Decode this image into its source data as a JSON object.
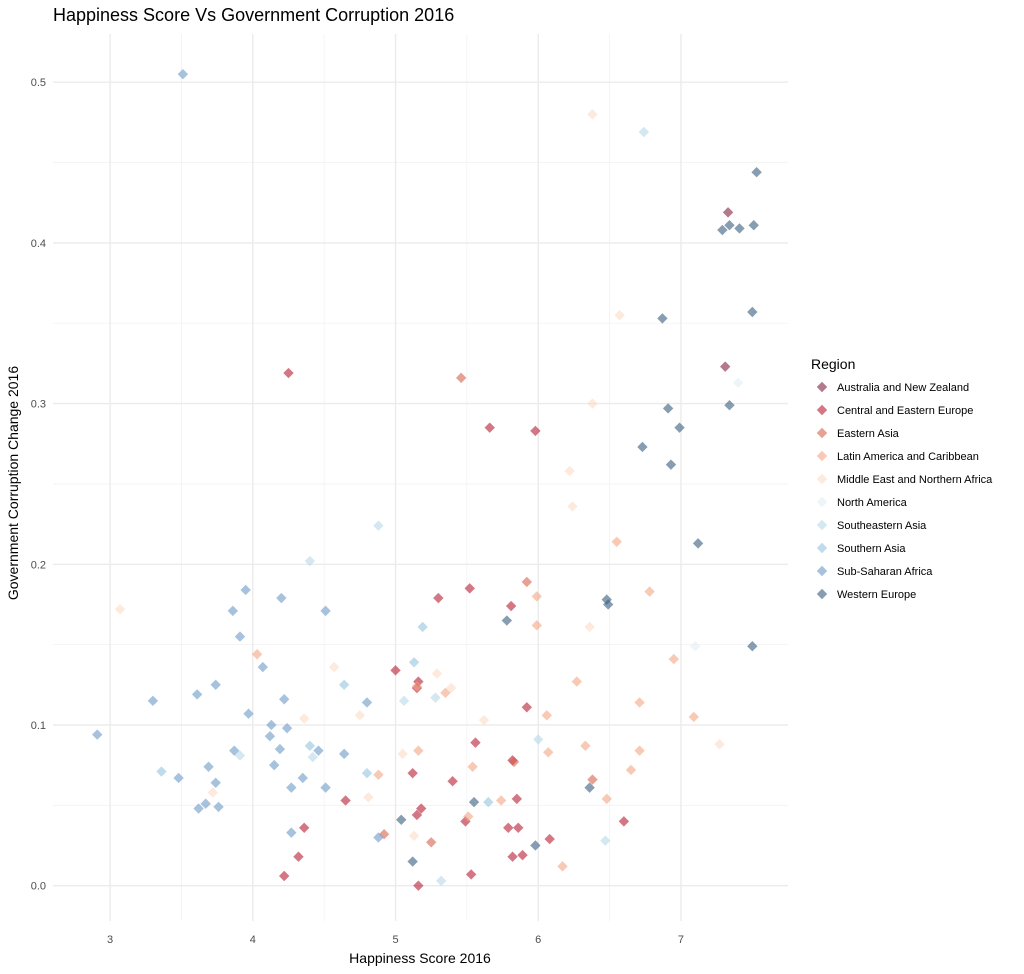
{
  "chart_data": {
    "type": "scatter",
    "title": "Happiness Score Vs Government Corruption 2016",
    "xlabel": "Happiness Score 2016",
    "ylabel": "Government Corruption Change 2016",
    "xlim": [
      2.6,
      7.75
    ],
    "ylim": [
      -0.022,
      0.53
    ],
    "x_ticks": [
      3,
      4,
      5,
      6,
      7
    ],
    "y_ticks": [
      0.0,
      0.1,
      0.2,
      0.3,
      0.4,
      0.5
    ],
    "y_tick_labels": [
      "0.0",
      "0.1",
      "0.2",
      "0.3",
      "0.4",
      "0.5"
    ],
    "grid": true,
    "marker": "diamond",
    "legend": {
      "title": "Region",
      "position": "right"
    },
    "series": [
      {
        "name": "Australia and New Zealand",
        "color": "#80223f",
        "points": [
          [
            7.33,
            0.419
          ],
          [
            7.31,
            0.323
          ]
        ]
      },
      {
        "name": "Central and Eastern Europe",
        "color": "#b51d33",
        "points": [
          [
            4.25,
            0.319
          ],
          [
            5.66,
            0.285
          ],
          [
            5.98,
            0.283
          ],
          [
            5.52,
            0.185
          ],
          [
            5.3,
            0.179
          ],
          [
            5.81,
            0.174
          ],
          [
            5.0,
            0.134
          ],
          [
            5.16,
            0.127
          ],
          [
            5.15,
            0.123
          ],
          [
            5.92,
            0.111
          ],
          [
            5.56,
            0.089
          ],
          [
            5.82,
            0.078
          ],
          [
            5.4,
            0.065
          ],
          [
            5.12,
            0.07
          ],
          [
            5.85,
            0.054
          ],
          [
            4.65,
            0.053
          ],
          [
            5.18,
            0.048
          ],
          [
            5.15,
            0.044
          ],
          [
            5.49,
            0.04
          ],
          [
            4.36,
            0.036
          ],
          [
            5.79,
            0.036
          ],
          [
            5.86,
            0.036
          ],
          [
            6.08,
            0.029
          ],
          [
            6.6,
            0.04
          ],
          [
            5.89,
            0.019
          ],
          [
            5.82,
            0.018
          ],
          [
            4.32,
            0.018
          ],
          [
            5.53,
            0.007
          ],
          [
            4.22,
            0.006
          ],
          [
            5.16,
            0.0
          ]
        ]
      },
      {
        "name": "Eastern Asia",
        "color": "#d6604d",
        "points": [
          [
            5.46,
            0.316
          ],
          [
            5.92,
            0.189
          ],
          [
            4.92,
            0.032
          ],
          [
            5.25,
            0.027
          ],
          [
            6.38,
            0.066
          ],
          [
            5.83,
            0.077
          ]
        ]
      },
      {
        "name": "Latin America and Caribbean",
        "color": "#f4a582",
        "points": [
          [
            6.55,
            0.214
          ],
          [
            6.78,
            0.183
          ],
          [
            5.99,
            0.18
          ],
          [
            5.99,
            0.162
          ],
          [
            4.03,
            0.144
          ],
          [
            6.95,
            0.141
          ],
          [
            6.27,
            0.127
          ],
          [
            6.71,
            0.114
          ],
          [
            7.09,
            0.105
          ],
          [
            6.06,
            0.106
          ],
          [
            5.15,
            0.124
          ],
          [
            5.35,
            0.12
          ],
          [
            6.33,
            0.087
          ],
          [
            6.71,
            0.084
          ],
          [
            6.07,
            0.083
          ],
          [
            5.16,
            0.084
          ],
          [
            4.88,
            0.069
          ],
          [
            5.54,
            0.074
          ],
          [
            6.65,
            0.072
          ],
          [
            5.74,
            0.053
          ],
          [
            6.48,
            0.054
          ],
          [
            5.51,
            0.043
          ],
          [
            6.17,
            0.012
          ]
        ]
      },
      {
        "name": "Middle East and Northern Africa",
        "color": "#fddbc7",
        "points": [
          [
            6.38,
            0.48
          ],
          [
            6.57,
            0.355
          ],
          [
            6.38,
            0.3
          ],
          [
            6.22,
            0.258
          ],
          [
            6.24,
            0.236
          ],
          [
            3.07,
            0.172
          ],
          [
            6.36,
            0.161
          ],
          [
            4.57,
            0.136
          ],
          [
            5.29,
            0.132
          ],
          [
            5.39,
            0.123
          ],
          [
            4.36,
            0.104
          ],
          [
            4.75,
            0.106
          ],
          [
            5.62,
            0.103
          ],
          [
            7.27,
            0.088
          ],
          [
            5.05,
            0.082
          ],
          [
            4.81,
            0.055
          ],
          [
            5.13,
            0.031
          ],
          [
            3.72,
            0.058
          ]
        ]
      },
      {
        "name": "North America",
        "color": "#e1eef4",
        "points": [
          [
            7.4,
            0.313
          ],
          [
            7.1,
            0.149
          ]
        ]
      },
      {
        "name": "Southeastern Asia",
        "color": "#b7d8e8",
        "points": [
          [
            6.74,
            0.469
          ],
          [
            4.4,
            0.202
          ],
          [
            4.88,
            0.224
          ],
          [
            5.06,
            0.115
          ],
          [
            5.28,
            0.117
          ],
          [
            6.0,
            0.091
          ],
          [
            4.42,
            0.08
          ],
          [
            3.91,
            0.081
          ],
          [
            5.32,
            0.003
          ],
          [
            6.47,
            0.028
          ]
        ]
      },
      {
        "name": "Southern Asia",
        "color": "#92c5de",
        "points": [
          [
            5.19,
            0.161
          ],
          [
            5.13,
            0.139
          ],
          [
            3.36,
            0.071
          ],
          [
            4.4,
            0.087
          ],
          [
            4.8,
            0.07
          ],
          [
            4.64,
            0.125
          ],
          [
            5.65,
            0.052
          ]
        ]
      },
      {
        "name": "Sub-Saharan Africa",
        "color": "#6a99c7",
        "points": [
          [
            3.51,
            0.505
          ],
          [
            3.95,
            0.184
          ],
          [
            4.2,
            0.179
          ],
          [
            4.51,
            0.171
          ],
          [
            3.86,
            0.171
          ],
          [
            3.91,
            0.155
          ],
          [
            4.07,
            0.136
          ],
          [
            3.74,
            0.125
          ],
          [
            3.61,
            0.119
          ],
          [
            4.22,
            0.116
          ],
          [
            3.3,
            0.115
          ],
          [
            4.8,
            0.114
          ],
          [
            3.97,
            0.107
          ],
          [
            4.13,
            0.1
          ],
          [
            4.24,
            0.098
          ],
          [
            4.12,
            0.093
          ],
          [
            2.91,
            0.094
          ],
          [
            4.19,
            0.085
          ],
          [
            4.46,
            0.084
          ],
          [
            3.87,
            0.084
          ],
          [
            4.64,
            0.082
          ],
          [
            4.15,
            0.075
          ],
          [
            3.69,
            0.074
          ],
          [
            4.35,
            0.067
          ],
          [
            3.48,
            0.067
          ],
          [
            3.74,
            0.064
          ],
          [
            4.27,
            0.061
          ],
          [
            4.51,
            0.061
          ],
          [
            3.67,
            0.051
          ],
          [
            3.76,
            0.049
          ],
          [
            3.62,
            0.048
          ],
          [
            4.27,
            0.033
          ],
          [
            4.88,
            0.03
          ]
        ]
      },
      {
        "name": "Western Europe",
        "color": "#375b7d",
        "points": [
          [
            7.53,
            0.444
          ],
          [
            7.34,
            0.411
          ],
          [
            7.51,
            0.411
          ],
          [
            7.41,
            0.409
          ],
          [
            7.29,
            0.408
          ],
          [
            6.87,
            0.353
          ],
          [
            7.5,
            0.357
          ],
          [
            7.34,
            0.299
          ],
          [
            6.91,
            0.297
          ],
          [
            6.99,
            0.285
          ],
          [
            6.73,
            0.273
          ],
          [
            6.93,
            0.262
          ],
          [
            7.12,
            0.213
          ],
          [
            6.48,
            0.178
          ],
          [
            6.49,
            0.175
          ],
          [
            5.78,
            0.165
          ],
          [
            7.5,
            0.149
          ],
          [
            5.55,
            0.052
          ],
          [
            6.36,
            0.061
          ],
          [
            5.04,
            0.041
          ],
          [
            5.98,
            0.025
          ],
          [
            5.12,
            0.015
          ]
        ]
      }
    ]
  }
}
